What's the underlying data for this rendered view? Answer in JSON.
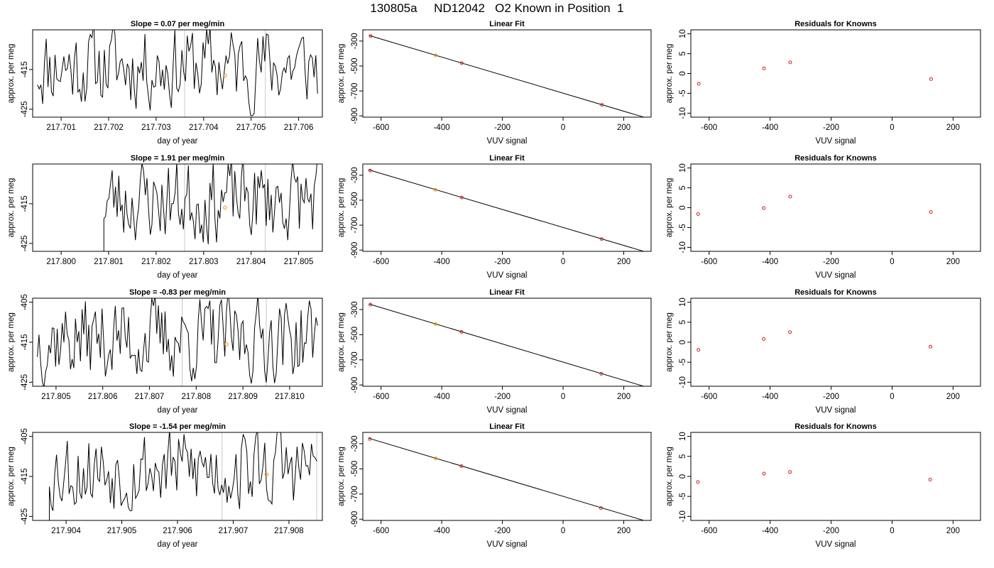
{
  "title": "130805a     ND12042   O2 Known in Position  1",
  "colors": {
    "line": "#000000",
    "vline": "#c8c8c8",
    "orange": "#ff8c00",
    "red": "#cc2222",
    "gray_point": "#7f7f7f"
  },
  "chart_data": [
    {
      "type": "line",
      "panel": "time-1",
      "title": "Slope =  0.07  per meg/min",
      "xlabel": "day of year",
      "ylabel": "approx. per meg",
      "xlim": [
        217.7004,
        217.7065
      ],
      "ylim": [
        -427,
        -405
      ],
      "xticks": [
        "217.701",
        "217.702",
        "217.703",
        "217.704",
        "217.705",
        "217.706"
      ],
      "yticks": [
        "-415",
        "-425"
      ],
      "start": 217.7005,
      "end": 217.7064,
      "base": -414,
      "amp": 9,
      "seed": 11,
      "n": 160,
      "vlines": [
        217.7036,
        217.7053
      ],
      "marker": {
        "x": 217.70445,
        "y": -416.5
      }
    },
    {
      "type": "line",
      "panel": "time-2",
      "title": "Slope =  1.91  per meg/min",
      "xlabel": "day of year",
      "ylabel": "approx. per meg",
      "xlim": [
        217.7994,
        217.8055
      ],
      "ylim": [
        -427,
        -405
      ],
      "xticks": [
        "217.800",
        "217.801",
        "217.802",
        "217.803",
        "217.804",
        "217.805"
      ],
      "yticks": [
        "-415",
        "-425"
      ],
      "start": 217.8009,
      "end": 217.8054,
      "base": -414,
      "amp": 9,
      "seed": 23,
      "n": 130,
      "vlines": [
        217.8026,
        217.8043
      ],
      "marker": {
        "x": 217.80345,
        "y": -416
      }
    },
    {
      "type": "line",
      "panel": "time-3",
      "title": "Slope =  -0.83  per meg/min",
      "xlabel": "day of year",
      "ylabel": "approx. per meg",
      "xlim": [
        217.8045,
        217.8107
      ],
      "ylim": [
        -426,
        -404
      ],
      "xticks": [
        "217.805",
        "217.806",
        "217.807",
        "217.808",
        "217.809",
        "217.810"
      ],
      "yticks": [
        "-405",
        "-415",
        "-425"
      ],
      "start": 217.8046,
      "end": 217.8106,
      "base": -414,
      "amp": 9,
      "seed": 37,
      "n": 170,
      "vlines": [
        217.8077,
        217.8095
      ],
      "marker": {
        "x": 217.80865,
        "y": -415.5
      }
    },
    {
      "type": "line",
      "panel": "time-4",
      "title": "Slope =  -1.54  per meg/min",
      "xlabel": "day of year",
      "ylabel": "approx. per meg",
      "xlim": [
        217.9034,
        217.9086
      ],
      "ylim": [
        -426,
        -404
      ],
      "xticks": [
        "217.904",
        "217.905",
        "217.906",
        "217.907",
        "217.908"
      ],
      "yticks": [
        "-405",
        "-415",
        "-425"
      ],
      "start": 217.9037,
      "end": 217.9085,
      "base": -413,
      "amp": 9,
      "seed": 53,
      "n": 150,
      "vlines": [
        217.9068,
        217.9085
      ],
      "marker": {
        "x": 217.9076,
        "y": -414.5
      }
    },
    {
      "type": "scatter",
      "panel": "fit-1",
      "title": "Linear Fit",
      "xlabel": "VUV signal",
      "ylabel": "approx. per meg",
      "xlim": [
        -660,
        290
      ],
      "ylim": [
        -910,
        -210
      ],
      "xticks": [
        -600,
        -400,
        -200,
        0,
        200
      ],
      "yticks": [
        -300,
        -500,
        -700,
        -900
      ],
      "points": [
        {
          "x": -634,
          "y": -260
        },
        {
          "x": -420,
          "y": -415
        },
        {
          "x": -334,
          "y": -477
        },
        {
          "x": 128,
          "y": -811
        }
      ],
      "fit": {
        "x1": -640,
        "y1": -255,
        "x2": 270,
        "y2": -913
      }
    },
    {
      "type": "scatter",
      "panel": "fit-2",
      "title": "Linear Fit",
      "xlabel": "VUV signal",
      "ylabel": "approx. per meg",
      "xlim": [
        -660,
        290
      ],
      "ylim": [
        -910,
        -210
      ],
      "xticks": [
        -600,
        -400,
        -200,
        0,
        200
      ],
      "yticks": [
        -300,
        -500,
        -700,
        -900
      ],
      "points": [
        {
          "x": -636,
          "y": -262
        },
        {
          "x": -421,
          "y": -417
        },
        {
          "x": -334,
          "y": -478
        },
        {
          "x": 127,
          "y": -812
        }
      ],
      "fit": {
        "x1": -640,
        "y1": -257,
        "x2": 270,
        "y2": -913
      }
    },
    {
      "type": "scatter",
      "panel": "fit-3",
      "title": "Linear Fit",
      "xlabel": "VUV signal",
      "ylabel": "approx. per meg",
      "xlim": [
        -660,
        290
      ],
      "ylim": [
        -910,
        -210
      ],
      "xticks": [
        -600,
        -400,
        -200,
        0,
        200
      ],
      "yticks": [
        -300,
        -500,
        -700,
        -900
      ],
      "points": [
        {
          "x": -635,
          "y": -261
        },
        {
          "x": -421,
          "y": -416
        },
        {
          "x": -335,
          "y": -478
        },
        {
          "x": 126,
          "y": -811
        }
      ],
      "fit": {
        "x1": -640,
        "y1": -256,
        "x2": 270,
        "y2": -913
      }
    },
    {
      "type": "scatter",
      "panel": "fit-4",
      "title": "Linear Fit",
      "xlabel": "VUV signal",
      "ylabel": "approx. per meg",
      "xlim": [
        -660,
        290
      ],
      "ylim": [
        -910,
        -210
      ],
      "xticks": [
        -600,
        -400,
        -200,
        0,
        200
      ],
      "yticks": [
        -300,
        -500,
        -700,
        -900
      ],
      "points": [
        {
          "x": -637,
          "y": -262
        },
        {
          "x": -420,
          "y": -417
        },
        {
          "x": -335,
          "y": -478
        },
        {
          "x": 125,
          "y": -812
        }
      ],
      "fit": {
        "x1": -640,
        "y1": -257,
        "x2": 270,
        "y2": -913
      }
    },
    {
      "type": "scatter",
      "panel": "resid-1",
      "title": "Residuals for Knowns",
      "xlabel": "VUV signal",
      "ylabel": "approx. per meg",
      "xlim": [
        -660,
        290
      ],
      "ylim": [
        -11,
        11
      ],
      "xticks": [
        -600,
        -400,
        -200,
        0,
        200
      ],
      "yticks": [
        10,
        5,
        0,
        -5,
        -10
      ],
      "points": [
        {
          "x": -634,
          "y": -2.6
        },
        {
          "x": -420,
          "y": 1.3
        },
        {
          "x": -334,
          "y": 2.8
        },
        {
          "x": 128,
          "y": -1.4
        }
      ]
    },
    {
      "type": "scatter",
      "panel": "resid-2",
      "title": "Residuals for Knowns",
      "xlabel": "VUV signal",
      "ylabel": "approx. per meg",
      "xlim": [
        -660,
        290
      ],
      "ylim": [
        -11,
        11
      ],
      "xticks": [
        -600,
        -400,
        -200,
        0,
        200
      ],
      "yticks": [
        10,
        5,
        0,
        -5,
        -10
      ],
      "points": [
        {
          "x": -636,
          "y": -1.6
        },
        {
          "x": -421,
          "y": -0.1
        },
        {
          "x": -334,
          "y": 2.8
        },
        {
          "x": 127,
          "y": -1.1
        }
      ]
    },
    {
      "type": "scatter",
      "panel": "resid-3",
      "title": "Residuals for Knowns",
      "xlabel": "VUV signal",
      "ylabel": "approx. per meg",
      "xlim": [
        -660,
        290
      ],
      "ylim": [
        -11,
        11
      ],
      "xticks": [
        -600,
        -400,
        -200,
        0,
        200
      ],
      "yticks": [
        10,
        5,
        0,
        -5,
        -10
      ],
      "points": [
        {
          "x": -635,
          "y": -1.9
        },
        {
          "x": -421,
          "y": 0.8
        },
        {
          "x": -335,
          "y": 2.5
        },
        {
          "x": 126,
          "y": -1.1
        }
      ]
    },
    {
      "type": "scatter",
      "panel": "resid-4",
      "title": "Residuals for Knowns",
      "xlabel": "VUV signal",
      "ylabel": "approx. per meg",
      "xlim": [
        -660,
        290
      ],
      "ylim": [
        -11,
        11
      ],
      "xticks": [
        -600,
        -400,
        -200,
        0,
        200
      ],
      "yticks": [
        10,
        5,
        0,
        -5,
        -10
      ],
      "points": [
        {
          "x": -637,
          "y": -1.4
        },
        {
          "x": -420,
          "y": 0.7
        },
        {
          "x": -335,
          "y": 1.1
        },
        {
          "x": 125,
          "y": -0.8
        }
      ]
    }
  ]
}
